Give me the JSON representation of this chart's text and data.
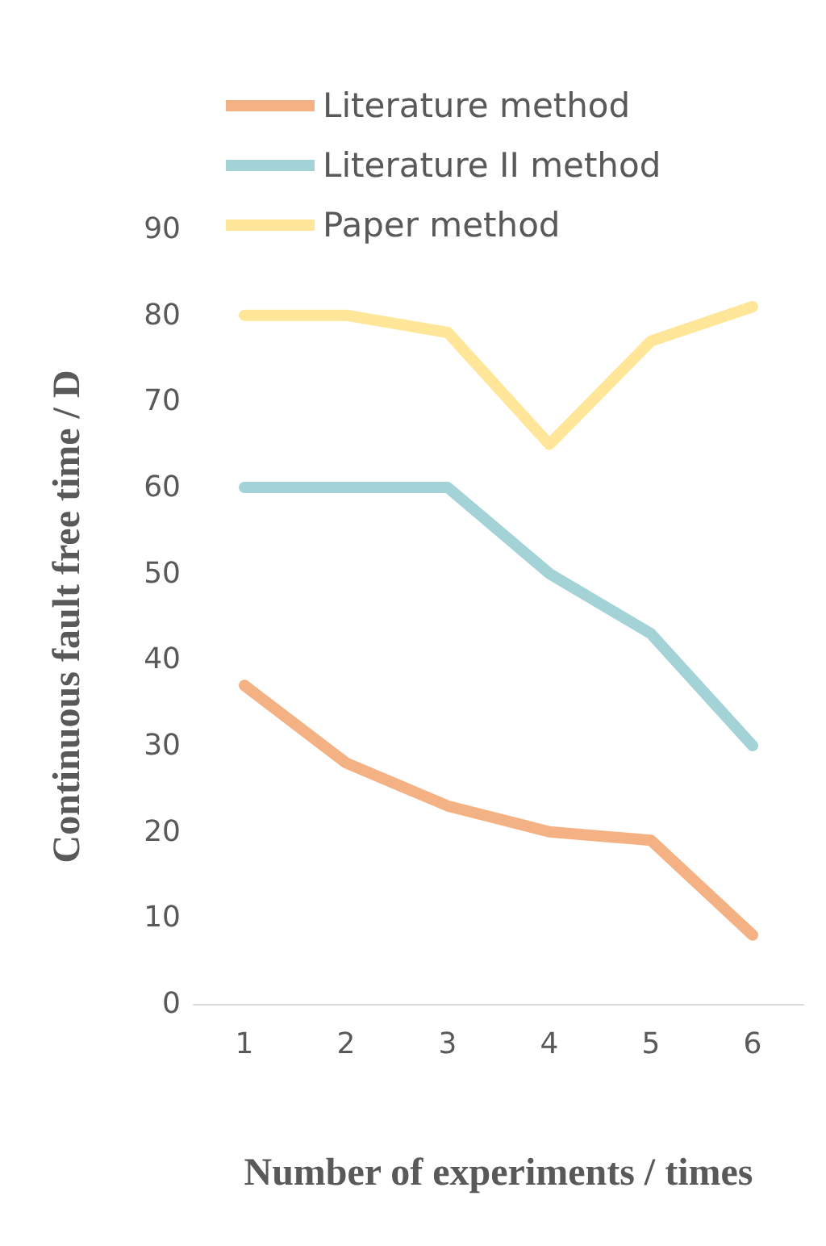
{
  "chart_data": {
    "type": "line",
    "xlabel": "Number of experiments / times",
    "ylabel": "Continuous fault free time / D",
    "categories": [
      "1",
      "2",
      "3",
      "4",
      "5",
      "6"
    ],
    "series": [
      {
        "name": "Literature method",
        "color": "#f4b183",
        "values": [
          37,
          28,
          23,
          20,
          19,
          8
        ]
      },
      {
        "name": "Literature II method",
        "color": "#a3d3d6",
        "values": [
          60,
          60,
          60,
          50,
          43,
          30
        ]
      },
      {
        "name": "Paper method",
        "color": "#ffe699",
        "values": [
          80,
          80,
          78,
          65,
          77,
          81
        ]
      }
    ],
    "ylim": [
      0,
      90
    ],
    "yticks": [
      0,
      10,
      20,
      30,
      40,
      50,
      60,
      70,
      80,
      90
    ],
    "grid": false,
    "legend": "top left",
    "line_style": "solid"
  }
}
